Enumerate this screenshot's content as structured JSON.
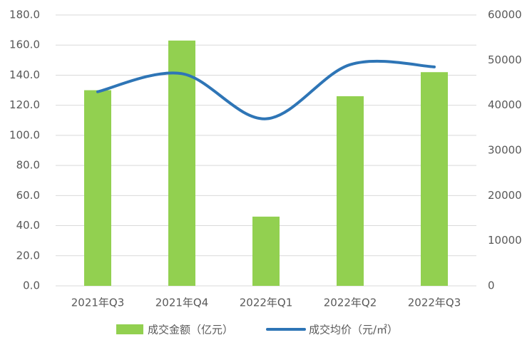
{
  "chart_data": {
    "type": "bar-line",
    "categories": [
      "2021年Q3",
      "2021年Q4",
      "2022年Q1",
      "2022年Q2",
      "2022年Q3"
    ],
    "series": [
      {
        "name": "成交金额（亿元）",
        "color": "#92d050",
        "type": "bar",
        "values": [
          130,
          163,
          46,
          126,
          142
        ]
      },
      {
        "name": "成交均价（元/㎡）",
        "color": "#2e75b6",
        "type": "line",
        "axis": "y2",
        "values": [
          43000,
          47000,
          37000,
          49000,
          48500
        ]
      }
    ],
    "ylim": [
      0,
      180
    ],
    "yticks": [
      {
        "value": 0,
        "label": "0.0"
      },
      {
        "value": 20,
        "label": "20.0"
      },
      {
        "value": 40,
        "label": "40.0"
      },
      {
        "value": 60,
        "label": "60.0"
      },
      {
        "value": 80,
        "label": "80.0"
      },
      {
        "value": 100,
        "label": "100.0"
      },
      {
        "value": 120,
        "label": "120.0"
      },
      {
        "value": 140,
        "label": "140.0"
      },
      {
        "value": 160,
        "label": "160.0"
      },
      {
        "value": 180,
        "label": "180.0"
      }
    ],
    "y2lim": [
      0,
      60000
    ],
    "y2ticks": [
      0,
      10000,
      20000,
      30000,
      40000,
      50000,
      60000
    ],
    "grid": true,
    "legend": "bottom"
  }
}
